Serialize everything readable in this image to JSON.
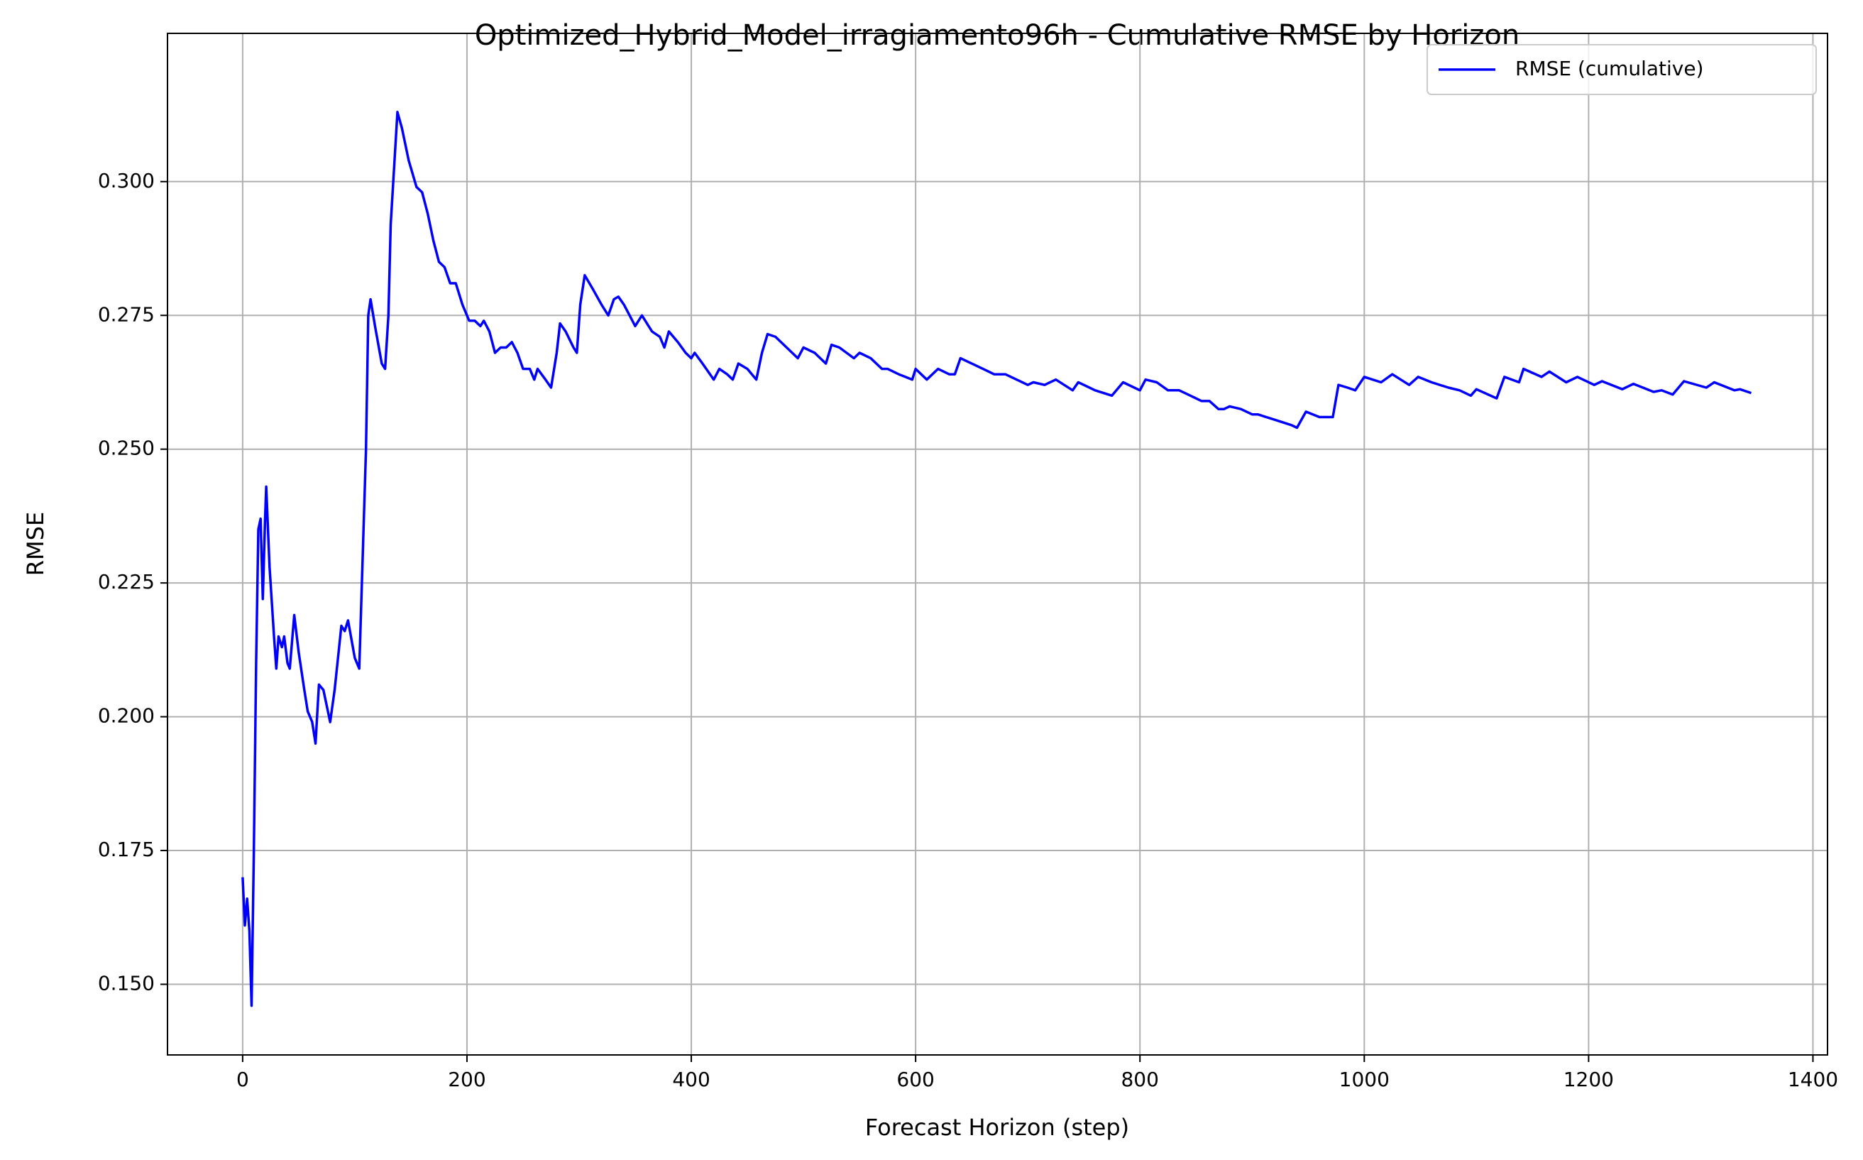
{
  "chart_data": {
    "type": "line",
    "title": "Optimized_Hybrid_Model_irragiamento96h - Cumulative RMSE by Horizon",
    "xlabel": "Forecast Horizon (step)",
    "ylabel": "RMSE",
    "x": [
      0,
      2,
      4,
      6,
      8,
      10,
      12,
      14,
      16,
      18,
      20,
      21,
      24,
      28,
      30,
      32,
      35,
      37,
      40,
      42,
      46,
      50,
      55,
      58,
      62,
      65,
      68,
      72,
      78,
      82,
      88,
      91,
      94,
      100,
      104,
      110,
      112,
      114,
      118,
      124,
      127,
      130,
      132,
      138,
      142,
      148,
      155,
      160,
      165,
      170,
      175,
      180,
      185,
      190,
      196,
      202,
      207,
      212,
      215,
      220,
      225,
      230,
      235,
      240,
      245,
      250,
      256,
      260,
      263,
      270,
      275,
      280,
      283,
      288,
      295,
      298,
      301,
      305,
      312,
      320,
      326,
      331,
      335,
      340,
      350,
      356,
      365,
      372,
      376,
      380,
      388,
      395,
      400,
      403,
      410,
      420,
      425,
      432,
      437,
      442,
      450,
      458,
      463,
      468,
      475,
      485,
      495,
      500,
      510,
      515,
      520,
      525,
      532,
      545,
      550,
      560,
      570,
      575,
      585,
      597,
      600,
      610,
      620,
      630,
      635,
      640,
      650,
      660,
      670,
      675,
      680,
      690,
      700,
      705,
      715,
      725,
      740,
      745,
      760,
      775,
      785,
      800,
      805,
      815,
      825,
      835,
      845,
      855,
      862,
      870,
      875,
      880,
      890,
      900,
      905,
      920,
      935,
      940,
      948,
      960,
      972,
      977,
      985,
      992,
      1000,
      1015,
      1025,
      1040,
      1048,
      1060,
      1075,
      1085,
      1095,
      1100,
      1118,
      1125,
      1138,
      1142,
      1158,
      1165,
      1180,
      1190,
      1205,
      1212,
      1230,
      1240,
      1258,
      1265,
      1275,
      1285,
      1305,
      1312,
      1330,
      1335,
      1345
    ],
    "series": [
      {
        "name": "RMSE (cumulative)",
        "color": "#0000ff",
        "values": [
          0.17,
          0.161,
          0.166,
          0.16,
          0.146,
          0.175,
          0.21,
          0.235,
          0.237,
          0.222,
          0.237,
          0.243,
          0.228,
          0.215,
          0.209,
          0.215,
          0.213,
          0.215,
          0.21,
          0.209,
          0.219,
          0.212,
          0.205,
          0.201,
          0.199,
          0.195,
          0.206,
          0.205,
          0.199,
          0.205,
          0.217,
          0.216,
          0.218,
          0.211,
          0.209,
          0.25,
          0.275,
          0.278,
          0.273,
          0.266,
          0.265,
          0.275,
          0.292,
          0.313,
          0.31,
          0.304,
          0.299,
          0.298,
          0.294,
          0.289,
          0.285,
          0.284,
          0.281,
          0.281,
          0.277,
          0.274,
          0.274,
          0.273,
          0.274,
          0.272,
          0.268,
          0.269,
          0.269,
          0.27,
          0.268,
          0.265,
          0.265,
          0.263,
          0.265,
          0.263,
          0.2615,
          0.268,
          0.2735,
          0.272,
          0.269,
          0.268,
          0.277,
          0.2825,
          0.28,
          0.277,
          0.275,
          0.278,
          0.2785,
          0.277,
          0.273,
          0.275,
          0.272,
          0.271,
          0.269,
          0.272,
          0.27,
          0.268,
          0.267,
          0.268,
          0.266,
          0.263,
          0.265,
          0.264,
          0.263,
          0.266,
          0.265,
          0.263,
          0.268,
          0.2715,
          0.271,
          0.269,
          0.267,
          0.269,
          0.268,
          0.267,
          0.266,
          0.2695,
          0.269,
          0.267,
          0.268,
          0.267,
          0.265,
          0.265,
          0.264,
          0.263,
          0.265,
          0.263,
          0.265,
          0.264,
          0.264,
          0.267,
          0.266,
          0.265,
          0.264,
          0.264,
          0.264,
          0.263,
          0.262,
          0.2625,
          0.262,
          0.263,
          0.261,
          0.2625,
          0.261,
          0.26,
          0.2625,
          0.261,
          0.263,
          0.2625,
          0.261,
          0.261,
          0.26,
          0.259,
          0.259,
          0.2575,
          0.2575,
          0.258,
          0.2575,
          0.2565,
          0.2565,
          0.2555,
          0.2545,
          0.254,
          0.257,
          0.256,
          0.256,
          0.262,
          0.2615,
          0.261,
          0.2635,
          0.2625,
          0.264,
          0.262,
          0.2635,
          0.2625,
          0.2615,
          0.261,
          0.26,
          0.2612,
          0.2595,
          0.2635,
          0.2625,
          0.265,
          0.2635,
          0.2645,
          0.2625,
          0.2635,
          0.262,
          0.2627,
          0.2612,
          0.2622,
          0.2607,
          0.261,
          0.2602,
          0.2627,
          0.2615,
          0.2625,
          0.261,
          0.2612,
          0.2605
        ]
      }
    ],
    "xlim": [
      -67,
      1413
    ],
    "ylim": [
      0.1368,
      0.3277
    ],
    "xticks": [
      0,
      200,
      400,
      600,
      800,
      1000,
      1200,
      1400
    ],
    "yticks": [
      {
        "value": 0.15,
        "label": "0.150"
      },
      {
        "value": 0.175,
        "label": "0.175"
      },
      {
        "value": 0.2,
        "label": "0.200"
      },
      {
        "value": 0.225,
        "label": "0.225"
      },
      {
        "value": 0.25,
        "label": "0.250"
      },
      {
        "value": 0.275,
        "label": "0.275"
      },
      {
        "value": 0.3,
        "label": "0.300"
      }
    ],
    "grid": true,
    "legend_loc": "upper right"
  }
}
